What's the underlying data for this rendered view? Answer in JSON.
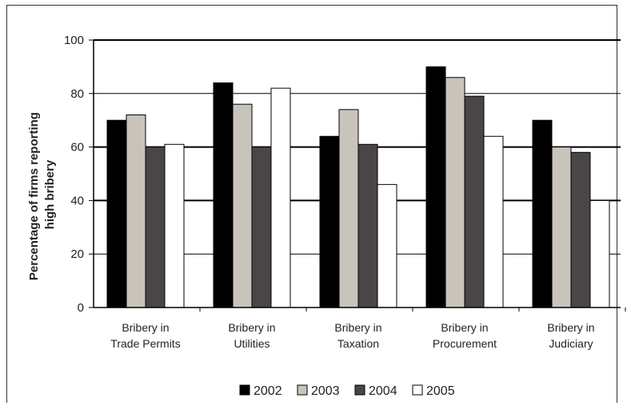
{
  "chart_data": {
    "type": "bar",
    "title": "",
    "xlabel": "",
    "ylabel": "Percentage of firms reporting high bribery",
    "ylabel_lines": [
      "Percentage of firms reporting",
      "high bribery"
    ],
    "ylim": [
      0,
      100
    ],
    "yticks": [
      0,
      20,
      40,
      60,
      80,
      100
    ],
    "grid": true,
    "legend_position": "bottom",
    "categories": [
      "Bribery in Trade Permits",
      "Bribery in Utilities",
      "Bribery in Taxation",
      "Bribery in Procurement",
      "Bribery in Judiciary"
    ],
    "category_lines": [
      [
        "Bribery in",
        "Trade Permits"
      ],
      [
        "Bribery in",
        "Utilities"
      ],
      [
        "Bribery in",
        "Taxation"
      ],
      [
        "Bribery in",
        "Procurement"
      ],
      [
        "Bribery in",
        "Judiciary"
      ]
    ],
    "series": [
      {
        "name": "2002",
        "color": "#000000",
        "values": [
          70,
          84,
          64,
          90,
          70
        ]
      },
      {
        "name": "2003",
        "color": "#c8c4bc",
        "values": [
          72,
          76,
          74,
          86,
          60
        ]
      },
      {
        "name": "2004",
        "color": "#4a4546",
        "values": [
          60,
          60,
          61,
          79,
          58
        ]
      },
      {
        "name": "2005",
        "color": "#ffffff",
        "values": [
          61,
          82,
          46,
          64,
          40
        ]
      }
    ]
  }
}
